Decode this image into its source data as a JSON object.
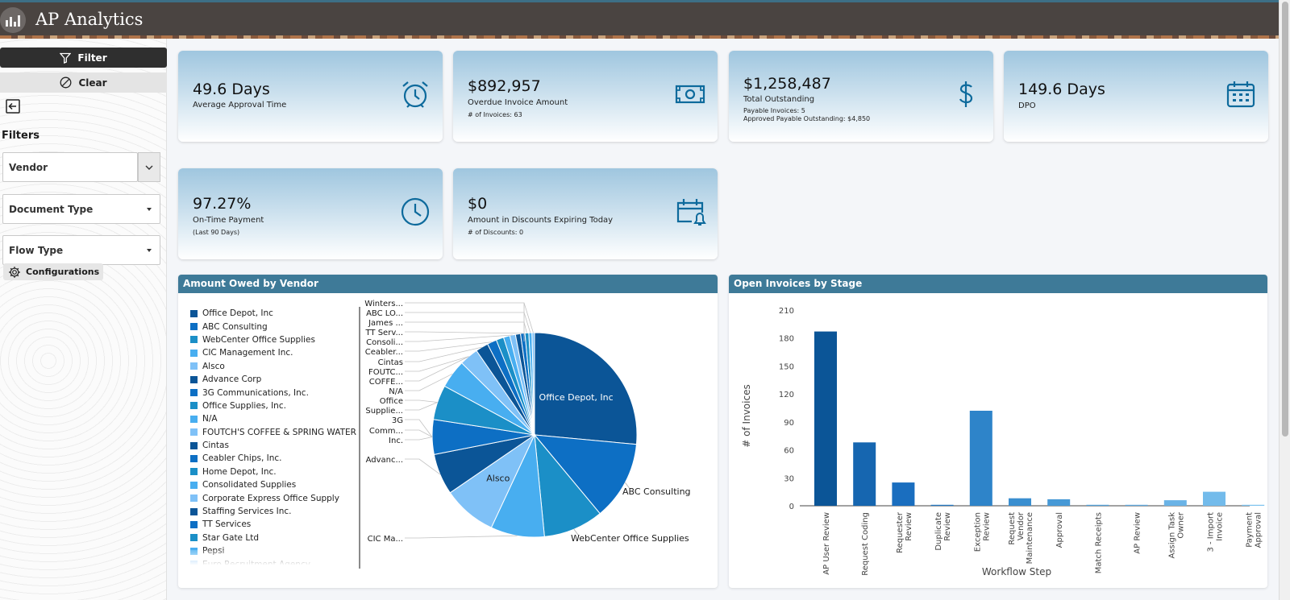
{
  "app": {
    "title": "AP Analytics"
  },
  "sidebar": {
    "filter_label": "Filter",
    "clear_label": "Clear",
    "filters_heading": "Filters",
    "vendor_label": "Vendor",
    "document_type_label": "Document Type",
    "flow_type_label": "Flow Type",
    "configurations_label": "Configurations"
  },
  "kpis": [
    {
      "value": "49.6 Days",
      "label": "Average Approval Time",
      "icon": "alarm-clock-icon"
    },
    {
      "value": "$892,957",
      "label": "Overdue Invoice Amount",
      "sub": "# of Invoices: 63",
      "icon": "cash-icon"
    },
    {
      "value": "$1,258,487",
      "label": "Total Outstanding",
      "sub1": "Payable Invoices: 5",
      "sub2": "Approved Payable Outstanding: $4,850",
      "icon": "dollar-icon"
    },
    {
      "value": "149.6 Days",
      "label": "DPO",
      "icon": "calendar-icon"
    },
    {
      "value": "97.27%",
      "label": "On-Time Payment",
      "sub": "(Last 90 Days)",
      "icon": "clock-icon"
    },
    {
      "value": "$0",
      "label": "Amount in Discounts Expiring Today",
      "sub": "# of Discounts: 0",
      "icon": "calendar-bell-icon"
    }
  ],
  "vendor_panel": {
    "title": "Amount Owed by Vendor",
    "legend": [
      {
        "name": "Office Depot, Inc",
        "color": "#0b5597"
      },
      {
        "name": "ABC Consulting",
        "color": "#0d6fc4"
      },
      {
        "name": "WebCenter Office Supplies",
        "color": "#1b8fc7"
      },
      {
        "name": "CIC Management Inc.",
        "color": "#48aef0"
      },
      {
        "name": "Alsco",
        "color": "#7fc1f7"
      },
      {
        "name": "Advance Corp",
        "color": "#0b5597"
      },
      {
        "name": "3G Communications, Inc.",
        "color": "#0d6fc4"
      },
      {
        "name": "Office Supplies, Inc.",
        "color": "#1b8fc7"
      },
      {
        "name": "N/A",
        "color": "#48aef0"
      },
      {
        "name": "FOUTCH'S COFFEE & SPRING WATER",
        "color": "#7fc1f7"
      },
      {
        "name": "Cintas",
        "color": "#0b5597"
      },
      {
        "name": "Ceabler Chips, Inc.",
        "color": "#0d6fc4"
      },
      {
        "name": "Home Depot, Inc.",
        "color": "#1b8fc7"
      },
      {
        "name": "Consolidated Supplies",
        "color": "#48aef0"
      },
      {
        "name": "Corporate Express Office Supply",
        "color": "#7fc1f7"
      },
      {
        "name": "Staffing Services Inc.",
        "color": "#0b5597"
      },
      {
        "name": "TT Services",
        "color": "#0d6fc4"
      },
      {
        "name": "Star Gate Ltd",
        "color": "#1b8fc7"
      },
      {
        "name": "Pepsi",
        "color": "#48aef0"
      },
      {
        "name": "Euro Recruitment Agency",
        "color": "#7fc1f7"
      }
    ],
    "pie_outer_labels": [
      "Winters...",
      "ABC LO...",
      "James ...",
      "TT Serv...",
      "Consoli...",
      "Ceabler...",
      "Cintas",
      "FOUTC...",
      "COFFE...",
      "N/A",
      "Office",
      "Supplie...",
      "3G",
      "Comm...",
      "Inc.",
      "Advanc...",
      "CIC Ma..."
    ],
    "pie_slice_labels": {
      "office_depot": "Office Depot, Inc",
      "abc": "ABC Consulting",
      "webcenter": "WebCenter Office Supplies",
      "alsco": "Alsco"
    }
  },
  "chart_data": [
    {
      "type": "pie",
      "title": "Amount Owed by Vendor",
      "categories": [
        "Office Depot, Inc",
        "ABC Consulting",
        "WebCenter Office Supplies",
        "CIC Management Inc.",
        "Alsco",
        "Advance Corp",
        "3G Communications, Inc.",
        "Office Supplies, Inc.",
        "N/A",
        "FOUTCH'S COFFEE & SPRING WATER",
        "Cintas",
        "Ceabler Chips, Inc.",
        "Home Depot, Inc.",
        "Consolidated Supplies",
        "Corporate Express Office Supply",
        "Staffing Services Inc.",
        "TT Services",
        "Star Gate Ltd",
        "Pepsi",
        "Euro Recruitment Agency"
      ],
      "values": [
        26.5,
        12.5,
        9.5,
        8.5,
        8.5,
        6.5,
        5.5,
        5.5,
        4.5,
        3,
        2,
        1.5,
        1.2,
        1,
        0.9,
        0.8,
        0.7,
        0.6,
        0.5,
        0.4
      ],
      "colors": [
        "#0b5597",
        "#0d6fc4",
        "#1b8fc7",
        "#48aef0",
        "#7fc1f7"
      ],
      "legend": "left"
    },
    {
      "type": "bar",
      "title": "Open Invoices by Stage",
      "categories": [
        "AP User Review",
        "Request Coding",
        "Requester Review",
        "Duplicate Review",
        "Exception Review",
        "Request Vendor Maintenance",
        "Approval",
        "Match Receipts",
        "AP Review",
        "Assign Task Owner",
        "3 - Import Invoice",
        "Payment Approval"
      ],
      "category_lines": [
        [
          "AP User Review"
        ],
        [
          "Request Coding"
        ],
        [
          "Requester",
          "Review"
        ],
        [
          "Duplicate",
          "Review"
        ],
        [
          "Exception",
          "Review"
        ],
        [
          "Request",
          "Vendor",
          "Maintenance"
        ],
        [
          "Approval"
        ],
        [
          "Match Receipts"
        ],
        [
          "AP Review"
        ],
        [
          "Assign Task",
          "Owner"
        ],
        [
          "3 - Import",
          "Invoice"
        ],
        [
          "Payment",
          "Approval"
        ]
      ],
      "values": [
        187,
        68,
        25,
        1,
        102,
        8,
        7,
        1,
        1,
        6,
        15,
        1
      ],
      "colors": [
        "#0b5597",
        "#1666b0",
        "#1a6ebf",
        "#2479c4",
        "#2e84c9",
        "#3a8fd0",
        "#4799d6",
        "#54a2db",
        "#60aae0",
        "#6ab3e6",
        "#73bbeb",
        "#7cc2ef"
      ],
      "xlabel": "Workflow Step",
      "ylabel": "# of Invoices",
      "yticks": [
        0,
        30,
        60,
        90,
        120,
        150,
        180,
        210
      ],
      "ylim": [
        0,
        210
      ],
      "grid": false
    }
  ],
  "stage_panel": {
    "title": "Open Invoices by Stage"
  }
}
